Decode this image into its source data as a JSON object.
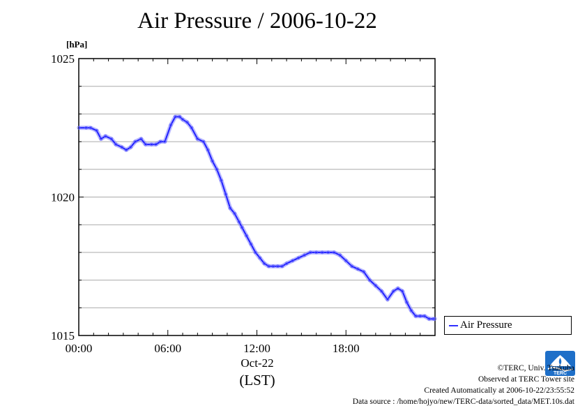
{
  "chart_data": {
    "type": "line",
    "title": "Air Pressure / 2006-10-22",
    "ylabel": "[hPa]",
    "xlabel_lines": [
      "Oct-22",
      "(LST)"
    ],
    "ylim": [
      1015,
      1025
    ],
    "xlim": [
      0,
      24
    ],
    "y_ticks": [
      1015,
      1020,
      1025
    ],
    "y_minor_step": 1,
    "x_ticks": [
      0,
      6,
      12,
      18
    ],
    "x_tick_labels": [
      "00:00",
      "06:00",
      "12:00",
      "18:00"
    ],
    "grid": true,
    "legend_position": "right",
    "series": [
      {
        "name": "Air Pressure",
        "color": "#2020ff",
        "x": [
          0,
          0.5,
          0.8,
          1.2,
          1.5,
          1.8,
          2.2,
          2.5,
          2.9,
          3.2,
          3.5,
          3.8,
          4.2,
          4.5,
          4.9,
          5.2,
          5.5,
          5.8,
          6.2,
          6.5,
          6.8,
          7.0,
          7.3,
          7.6,
          8.0,
          8.4,
          8.7,
          9.0,
          9.3,
          9.6,
          9.9,
          10.2,
          10.5,
          10.8,
          11.0,
          11.3,
          11.6,
          11.9,
          12.2,
          12.5,
          12.8,
          13.1,
          13.4,
          13.7,
          14.0,
          14.4,
          14.8,
          15.2,
          15.6,
          16.0,
          16.4,
          16.8,
          17.2,
          17.6,
          18.0,
          18.4,
          18.8,
          19.2,
          19.6,
          20.0,
          20.4,
          20.8,
          21.2,
          21.5,
          21.8,
          22.1,
          22.4,
          22.7,
          23.0,
          23.3,
          23.6,
          23.9,
          24.0
        ],
        "y": [
          1022.5,
          1022.5,
          1022.5,
          1022.4,
          1022.1,
          1022.2,
          1022.1,
          1021.9,
          1021.8,
          1021.7,
          1021.8,
          1022.0,
          1022.1,
          1021.9,
          1021.9,
          1021.9,
          1022.0,
          1022.0,
          1022.6,
          1022.9,
          1022.9,
          1022.8,
          1022.7,
          1022.5,
          1022.1,
          1022.0,
          1021.7,
          1021.3,
          1021.0,
          1020.6,
          1020.1,
          1019.6,
          1019.4,
          1019.1,
          1018.9,
          1018.6,
          1018.3,
          1018.0,
          1017.8,
          1017.6,
          1017.5,
          1017.5,
          1017.5,
          1017.5,
          1017.6,
          1017.7,
          1017.8,
          1017.9,
          1018.0,
          1018.0,
          1018.0,
          1018.0,
          1018.0,
          1017.9,
          1017.7,
          1017.5,
          1017.4,
          1017.3,
          1017.0,
          1016.8,
          1016.6,
          1016.3,
          1016.6,
          1016.7,
          1016.6,
          1016.2,
          1015.9,
          1015.7,
          1015.7,
          1015.7,
          1015.6,
          1015.6,
          1015.6
        ]
      }
    ]
  },
  "credits": {
    "copyright": "©TERC, Univ. Tsukuba",
    "observed": "Observed at TERC Tower site",
    "created": "Created Automatically at 2006-10-22/23:55:52",
    "source": "Data source : /home/hojyo/new/TERC-data/sorted_data/MET.10s.dat"
  },
  "logo": {
    "text": "TERC",
    "color": "#1e6fc8"
  }
}
